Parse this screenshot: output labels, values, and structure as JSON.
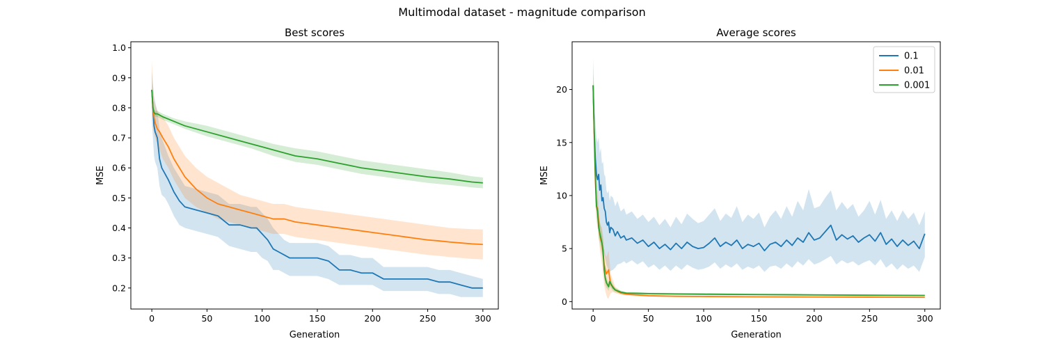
{
  "figure": {
    "suptitle": "Multimodal dataset - magnitude comparison"
  },
  "chart_data": [
    {
      "type": "line",
      "title": "Best scores",
      "xlabel": "Generation",
      "ylabel": "MSE",
      "xlim": [
        -19,
        314
      ],
      "ylim": [
        0.13,
        1.02
      ],
      "xticks": [
        0,
        50,
        100,
        150,
        200,
        250,
        300
      ],
      "yticks": [
        0.2,
        0.3,
        0.4,
        0.5,
        0.6,
        0.7,
        0.8,
        0.9,
        1.0
      ],
      "ytick_labels": [
        "0.2",
        "0.3",
        "0.4",
        "0.5",
        "0.6",
        "0.7",
        "0.8",
        "0.9",
        "1.0"
      ],
      "grid": false,
      "legend": false,
      "series": [
        {
          "name": "0.1",
          "color": "#1f77b4",
          "x": [
            0,
            1,
            2,
            3,
            5,
            7,
            9,
            12,
            15,
            20,
            25,
            30,
            40,
            50,
            60,
            70,
            80,
            90,
            95,
            100,
            105,
            110,
            115,
            120,
            125,
            130,
            140,
            150,
            160,
            170,
            180,
            190,
            200,
            210,
            220,
            230,
            240,
            250,
            260,
            270,
            280,
            290,
            300
          ],
          "y": [
            0.86,
            0.8,
            0.74,
            0.72,
            0.7,
            0.63,
            0.6,
            0.58,
            0.56,
            0.52,
            0.49,
            0.47,
            0.46,
            0.45,
            0.44,
            0.41,
            0.41,
            0.4,
            0.4,
            0.38,
            0.36,
            0.33,
            0.32,
            0.31,
            0.3,
            0.3,
            0.3,
            0.3,
            0.29,
            0.26,
            0.26,
            0.25,
            0.25,
            0.23,
            0.23,
            0.23,
            0.23,
            0.23,
            0.22,
            0.22,
            0.21,
            0.2,
            0.2
          ],
          "lower": [
            0.76,
            0.7,
            0.64,
            0.62,
            0.6,
            0.54,
            0.51,
            0.5,
            0.48,
            0.44,
            0.41,
            0.4,
            0.39,
            0.38,
            0.37,
            0.34,
            0.33,
            0.32,
            0.32,
            0.3,
            0.29,
            0.26,
            0.26,
            0.25,
            0.24,
            0.24,
            0.24,
            0.24,
            0.23,
            0.21,
            0.21,
            0.21,
            0.21,
            0.19,
            0.19,
            0.19,
            0.19,
            0.19,
            0.18,
            0.18,
            0.17,
            0.17,
            0.17
          ],
          "upper": [
            0.92,
            0.88,
            0.84,
            0.82,
            0.79,
            0.73,
            0.7,
            0.67,
            0.64,
            0.6,
            0.57,
            0.54,
            0.53,
            0.52,
            0.51,
            0.48,
            0.48,
            0.47,
            0.47,
            0.45,
            0.43,
            0.4,
            0.38,
            0.36,
            0.35,
            0.35,
            0.35,
            0.35,
            0.34,
            0.31,
            0.31,
            0.3,
            0.3,
            0.27,
            0.27,
            0.27,
            0.27,
            0.27,
            0.26,
            0.26,
            0.25,
            0.24,
            0.23
          ]
        },
        {
          "name": "0.01",
          "color": "#ff7f0e",
          "x": [
            0,
            1,
            2,
            3,
            5,
            7,
            10,
            15,
            20,
            25,
            30,
            40,
            50,
            60,
            70,
            80,
            90,
            100,
            110,
            120,
            130,
            140,
            150,
            160,
            170,
            180,
            190,
            200,
            210,
            220,
            230,
            240,
            250,
            260,
            270,
            280,
            290,
            300
          ],
          "y": [
            0.86,
            0.8,
            0.77,
            0.75,
            0.73,
            0.72,
            0.7,
            0.67,
            0.63,
            0.6,
            0.57,
            0.53,
            0.5,
            0.48,
            0.47,
            0.46,
            0.45,
            0.44,
            0.43,
            0.43,
            0.42,
            0.415,
            0.41,
            0.405,
            0.4,
            0.395,
            0.39,
            0.385,
            0.38,
            0.375,
            0.37,
            0.365,
            0.36,
            0.357,
            0.353,
            0.35,
            0.347,
            0.345
          ],
          "lower": [
            0.8,
            0.74,
            0.72,
            0.7,
            0.68,
            0.66,
            0.63,
            0.6,
            0.56,
            0.53,
            0.5,
            0.47,
            0.45,
            0.43,
            0.42,
            0.41,
            0.4,
            0.39,
            0.38,
            0.38,
            0.37,
            0.365,
            0.36,
            0.355,
            0.35,
            0.345,
            0.34,
            0.335,
            0.33,
            0.325,
            0.32,
            0.315,
            0.31,
            0.307,
            0.303,
            0.3,
            0.297,
            0.295
          ],
          "upper": [
            0.96,
            0.88,
            0.83,
            0.81,
            0.79,
            0.78,
            0.77,
            0.74,
            0.7,
            0.67,
            0.64,
            0.6,
            0.57,
            0.55,
            0.53,
            0.51,
            0.5,
            0.49,
            0.48,
            0.48,
            0.47,
            0.465,
            0.46,
            0.455,
            0.45,
            0.445,
            0.44,
            0.435,
            0.43,
            0.425,
            0.42,
            0.415,
            0.41,
            0.405,
            0.4,
            0.398,
            0.396,
            0.395
          ]
        },
        {
          "name": "0.001",
          "color": "#2ca02c",
          "x": [
            0,
            1,
            2,
            3,
            5,
            10,
            20,
            30,
            50,
            70,
            90,
            110,
            130,
            150,
            170,
            190,
            210,
            230,
            250,
            270,
            290,
            300
          ],
          "y": [
            0.86,
            0.8,
            0.785,
            0.78,
            0.78,
            0.77,
            0.755,
            0.74,
            0.72,
            0.7,
            0.68,
            0.66,
            0.64,
            0.63,
            0.615,
            0.6,
            0.59,
            0.58,
            0.57,
            0.563,
            0.553,
            0.55
          ],
          "lower": [
            0.84,
            0.77,
            0.775,
            0.77,
            0.77,
            0.76,
            0.745,
            0.73,
            0.705,
            0.685,
            0.665,
            0.64,
            0.62,
            0.61,
            0.595,
            0.58,
            0.57,
            0.56,
            0.55,
            0.543,
            0.535,
            0.532
          ],
          "upper": [
            0.88,
            0.83,
            0.795,
            0.79,
            0.79,
            0.78,
            0.765,
            0.755,
            0.74,
            0.72,
            0.7,
            0.68,
            0.665,
            0.655,
            0.64,
            0.625,
            0.615,
            0.605,
            0.595,
            0.585,
            0.572,
            0.568
          ]
        }
      ]
    },
    {
      "type": "line",
      "title": "Average scores",
      "xlabel": "Generation",
      "ylabel": "MSE",
      "xlim": [
        -19,
        314
      ],
      "ylim": [
        -0.7,
        24.5
      ],
      "xticks": [
        0,
        50,
        100,
        150,
        200,
        250,
        300
      ],
      "yticks": [
        0,
        5,
        10,
        15,
        20
      ],
      "ytick_labels": [
        "0",
        "5",
        "10",
        "15",
        "20"
      ],
      "grid": false,
      "legend": true,
      "legend_position": "top-right",
      "series": [
        {
          "name": "0.1",
          "color": "#1f77b4",
          "x": [
            0,
            1,
            2,
            3,
            4,
            5,
            6,
            7,
            8,
            9,
            10,
            11,
            12,
            13,
            14,
            15,
            16,
            18,
            20,
            22,
            25,
            28,
            30,
            35,
            40,
            45,
            50,
            55,
            60,
            65,
            70,
            75,
            80,
            85,
            90,
            95,
            100,
            105,
            110,
            115,
            120,
            125,
            130,
            135,
            140,
            145,
            150,
            155,
            160,
            165,
            170,
            175,
            180,
            185,
            190,
            195,
            200,
            205,
            210,
            215,
            220,
            225,
            230,
            235,
            240,
            245,
            250,
            255,
            260,
            265,
            270,
            275,
            280,
            285,
            290,
            295,
            300
          ],
          "y": [
            20.4,
            16.0,
            13.5,
            12.0,
            11.5,
            12.0,
            10.5,
            11.0,
            9.5,
            9.8,
            8.8,
            8.5,
            7.5,
            7.2,
            7.5,
            6.5,
            7.0,
            6.8,
            6.2,
            6.6,
            6.0,
            6.2,
            5.8,
            6.0,
            5.5,
            5.8,
            5.2,
            5.6,
            5.0,
            5.4,
            4.9,
            5.5,
            5.0,
            5.6,
            5.2,
            5.0,
            5.1,
            5.5,
            6.0,
            5.2,
            5.6,
            5.3,
            5.8,
            5.0,
            5.4,
            5.2,
            5.5,
            4.8,
            5.4,
            5.6,
            5.2,
            5.8,
            5.3,
            6.0,
            5.6,
            6.5,
            5.8,
            6.0,
            6.6,
            7.2,
            5.8,
            6.3,
            5.9,
            6.2,
            5.6,
            6.0,
            6.3,
            5.7,
            6.5,
            5.4,
            5.9,
            5.2,
            5.8,
            5.3,
            5.7,
            5.0,
            6.4
          ],
          "lower": [
            19.0,
            14.0,
            11.0,
            9.0,
            8.5,
            8.0,
            7.0,
            6.5,
            5.5,
            5.0,
            4.5,
            4.0,
            3.5,
            3.2,
            3.0,
            2.8,
            2.9,
            3.0,
            3.2,
            3.5,
            3.6,
            3.8,
            3.6,
            3.9,
            3.5,
            3.8,
            3.2,
            3.5,
            3.0,
            3.4,
            2.9,
            3.4,
            3.0,
            3.5,
            3.2,
            3.0,
            3.1,
            3.3,
            3.7,
            3.1,
            3.5,
            3.2,
            3.6,
            3.0,
            3.3,
            3.1,
            3.4,
            2.8,
            3.3,
            3.4,
            3.1,
            3.6,
            3.2,
            3.8,
            3.4,
            4.0,
            3.5,
            3.7,
            4.0,
            4.3,
            3.5,
            3.9,
            3.6,
            3.8,
            3.4,
            3.7,
            3.9,
            3.4,
            4.0,
            3.2,
            3.6,
            3.0,
            3.5,
            3.1,
            3.4,
            2.8,
            4.2
          ],
          "upper": [
            23.0,
            19.5,
            17.0,
            15.5,
            15.0,
            15.5,
            14.0,
            14.5,
            13.0,
            13.2,
            12.0,
            11.8,
            10.5,
            10.2,
            10.5,
            9.5,
            10.0,
            9.8,
            9.0,
            9.5,
            8.5,
            8.8,
            8.2,
            8.5,
            7.8,
            8.2,
            7.5,
            8.0,
            7.2,
            7.8,
            7.0,
            8.0,
            7.3,
            8.3,
            7.8,
            7.4,
            7.6,
            8.2,
            8.8,
            7.6,
            8.3,
            7.9,
            9.0,
            7.5,
            8.2,
            7.8,
            8.4,
            7.0,
            8.0,
            8.6,
            7.8,
            9.0,
            8.0,
            9.5,
            8.6,
            10.6,
            8.8,
            9.0,
            9.8,
            10.5,
            8.6,
            9.4,
            8.7,
            9.2,
            8.0,
            8.6,
            9.5,
            8.2,
            9.6,
            7.8,
            8.6,
            7.6,
            8.6,
            7.8,
            8.4,
            7.2,
            8.5
          ]
        },
        {
          "name": "0.01",
          "color": "#ff7f0e",
          "x": [
            0,
            1,
            2,
            3,
            4,
            5,
            6,
            7,
            8,
            9,
            10,
            11,
            12,
            13,
            14,
            15,
            16,
            18,
            20,
            25,
            30,
            40,
            50,
            75,
            100,
            150,
            200,
            250,
            300
          ],
          "y": [
            20.4,
            15.5,
            11.5,
            9.0,
            8.8,
            7.5,
            6.3,
            5.8,
            5.5,
            4.5,
            3.5,
            3.0,
            2.6,
            2.8,
            3.0,
            2.2,
            1.6,
            1.4,
            1.1,
            0.8,
            0.7,
            0.62,
            0.55,
            0.5,
            0.48,
            0.45,
            0.43,
            0.42,
            0.4
          ],
          "lower": [
            19.2,
            13.5,
            9.5,
            7.5,
            7.0,
            6.0,
            5.0,
            4.2,
            3.5,
            2.5,
            1.5,
            1.0,
            0.6,
            0.3,
            0.3,
            0.6,
            0.8,
            0.9,
            0.8,
            0.65,
            0.58,
            0.52,
            0.48,
            0.44,
            0.42,
            0.4,
            0.38,
            0.37,
            0.35
          ],
          "upper": [
            22.5,
            17.5,
            13.5,
            10.5,
            10.5,
            9.0,
            7.5,
            7.2,
            7.0,
            6.2,
            5.0,
            4.5,
            4.2,
            4.5,
            4.8,
            3.6,
            2.6,
            2.0,
            1.4,
            0.95,
            0.82,
            0.72,
            0.63,
            0.57,
            0.55,
            0.52,
            0.5,
            0.49,
            0.47
          ]
        },
        {
          "name": "0.001",
          "color": "#2ca02c",
          "x": [
            0,
            1,
            2,
            3,
            4,
            5,
            6,
            7,
            8,
            9,
            10,
            11,
            12,
            13,
            14,
            15,
            16,
            18,
            20,
            25,
            30,
            40,
            50,
            75,
            100,
            150,
            200,
            250,
            300
          ],
          "y": [
            20.4,
            16.0,
            12.0,
            9.0,
            8.5,
            7.0,
            6.5,
            6.0,
            5.5,
            4.8,
            3.0,
            2.2,
            1.8,
            1.6,
            1.4,
            1.9,
            1.7,
            1.3,
            1.1,
            0.9,
            0.8,
            0.78,
            0.75,
            0.72,
            0.7,
            0.66,
            0.63,
            0.6,
            0.58
          ],
          "lower": [
            19.5,
            14.5,
            10.5,
            8.0,
            7.5,
            6.0,
            5.5,
            5.0,
            4.5,
            3.8,
            2.2,
            1.6,
            1.3,
            1.2,
            1.0,
            1.4,
            1.3,
            1.0,
            0.9,
            0.75,
            0.7,
            0.68,
            0.66,
            0.63,
            0.61,
            0.58,
            0.55,
            0.53,
            0.51
          ],
          "upper": [
            21.5,
            17.5,
            13.5,
            10.0,
            9.5,
            8.0,
            7.5,
            7.0,
            6.5,
            5.8,
            3.8,
            2.8,
            2.3,
            2.0,
            1.8,
            2.4,
            2.1,
            1.6,
            1.3,
            1.05,
            0.9,
            0.88,
            0.85,
            0.82,
            0.8,
            0.76,
            0.72,
            0.69,
            0.66
          ]
        }
      ]
    }
  ]
}
